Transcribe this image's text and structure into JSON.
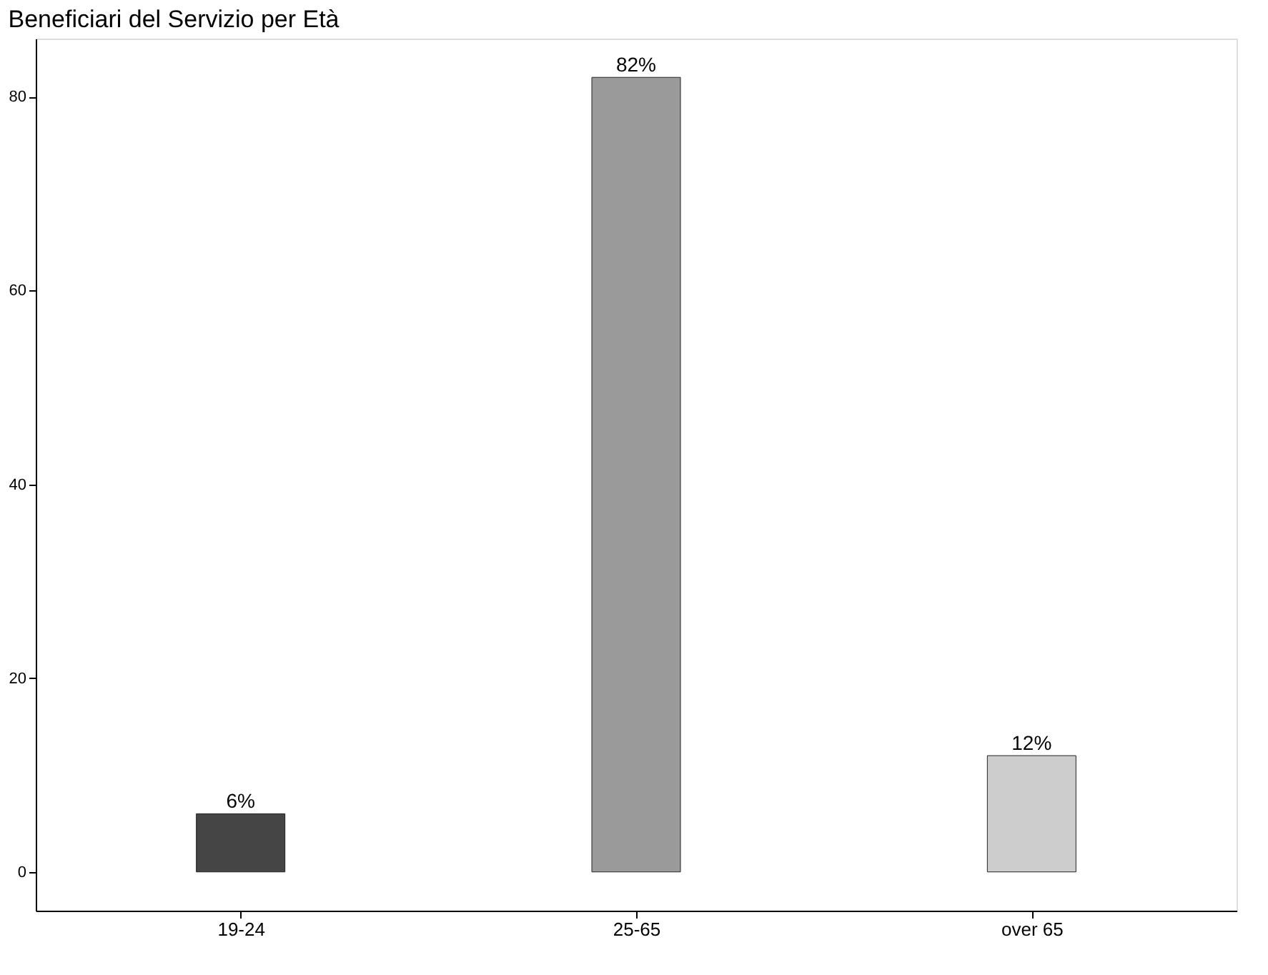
{
  "chart_data": {
    "type": "bar",
    "title": "Beneficiari del Servizio per Età",
    "categories": [
      "19-24",
      "25-65",
      "over 65"
    ],
    "values": [
      6,
      82,
      12
    ],
    "colors": [
      "#454545",
      "#9a9a9a",
      "#cdcdcd"
    ],
    "value_labels": [
      "6%",
      "82%",
      "12%"
    ],
    "ylim": [
      -4,
      86
    ],
    "yticks": [
      0,
      20,
      40,
      60,
      80
    ],
    "grid": false
  }
}
